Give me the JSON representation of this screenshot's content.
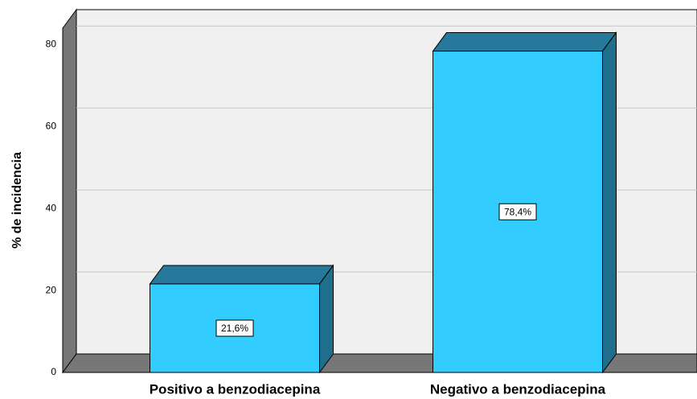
{
  "chart_data": {
    "type": "bar3d",
    "categories": [
      "Positivo a benzodiacepina",
      "Negativo a benzodiacepina"
    ],
    "values": [
      21.6,
      78.4
    ],
    "value_labels": [
      "21,6%",
      "78,4%"
    ],
    "ylabel": "% de incidencia",
    "ylim": [
      0,
      84
    ],
    "yticks": [
      0,
      20,
      40,
      60,
      80
    ],
    "color": "#33ccff",
    "grid": true
  }
}
